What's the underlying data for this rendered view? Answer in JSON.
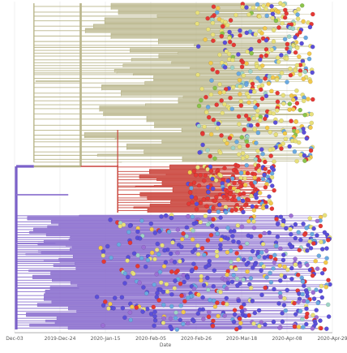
{
  "chart_data": {
    "type": "scatter",
    "subtype": "time-scaled phylogenetic tree",
    "title": "",
    "xlabel": "Date",
    "ylabel": "",
    "x_ticks": [
      "Dec-03",
      "2019-Dec-24",
      "2020-Jan-15",
      "2020-Feb-05",
      "2020-Feb-26",
      "2020-Mar-18",
      "2020-Apr-08",
      "2020-Apr-29"
    ],
    "xlim": [
      "2019-12-03",
      "2020-04-29"
    ],
    "grid": "vertical",
    "legend": "none",
    "tip_colors": [
      "#e8e07a",
      "#f2c94c",
      "#e53935",
      "#5b4fd9",
      "#6aa9e0",
      "#9fd3c7",
      "#9c6fd6",
      "#8bc34a"
    ],
    "branch_colors": {
      "root": "#7b61c9",
      "clade_a": "#b9b58a",
      "clade_b": "#c9443b",
      "clade_c": "#8e74d0"
    },
    "clades": [
      {
        "name": "",
        "branch_color": "clade_a",
        "origin": "2019-12-12",
        "tip_range": [
          "2020-02-26",
          "2020-04-20"
        ],
        "tip_count": 420
      },
      {
        "name": "",
        "branch_color": "clade_b",
        "origin": "2020-01-20",
        "tip_range": [
          "2020-02-20",
          "2020-04-02"
        ],
        "tip_count": 170
      },
      {
        "name": "",
        "branch_color": "clade_c",
        "origin": "2019-12-04",
        "tip_range": [
          "2020-01-10",
          "2020-04-28"
        ],
        "tip_count": 480
      }
    ]
  }
}
